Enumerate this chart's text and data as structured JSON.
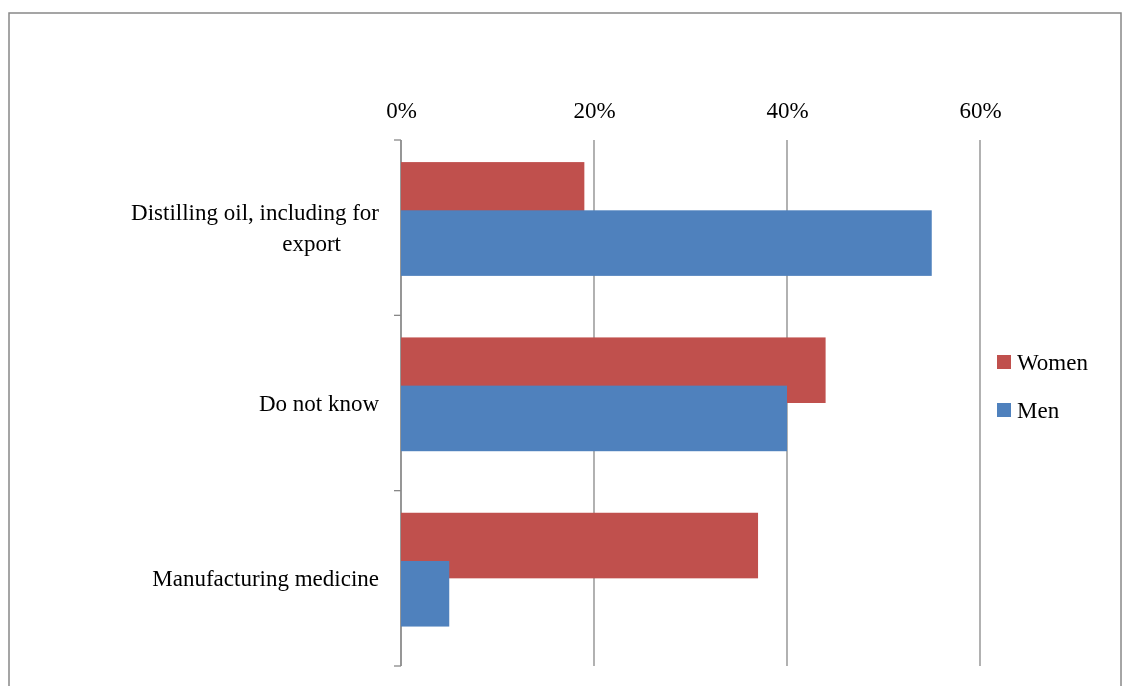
{
  "chart_data": {
    "type": "bar",
    "orientation": "horizontal",
    "categories": [
      "Distilling oil, including for export",
      "Do not know",
      "Manufacturing medicine"
    ],
    "series": [
      {
        "name": "Women",
        "color": "#c0504d",
        "values": [
          19,
          44,
          37
        ]
      },
      {
        "name": "Men",
        "color": "#4f81bd",
        "values": [
          55,
          40,
          5
        ]
      }
    ],
    "xlim": [
      0,
      60
    ],
    "xticks": [
      {
        "value": 0,
        "label": "0%"
      },
      {
        "value": 20,
        "label": "20%"
      },
      {
        "value": 40,
        "label": "40%"
      },
      {
        "value": 60,
        "label": "60%"
      }
    ],
    "grid": "x",
    "legend": "right"
  }
}
